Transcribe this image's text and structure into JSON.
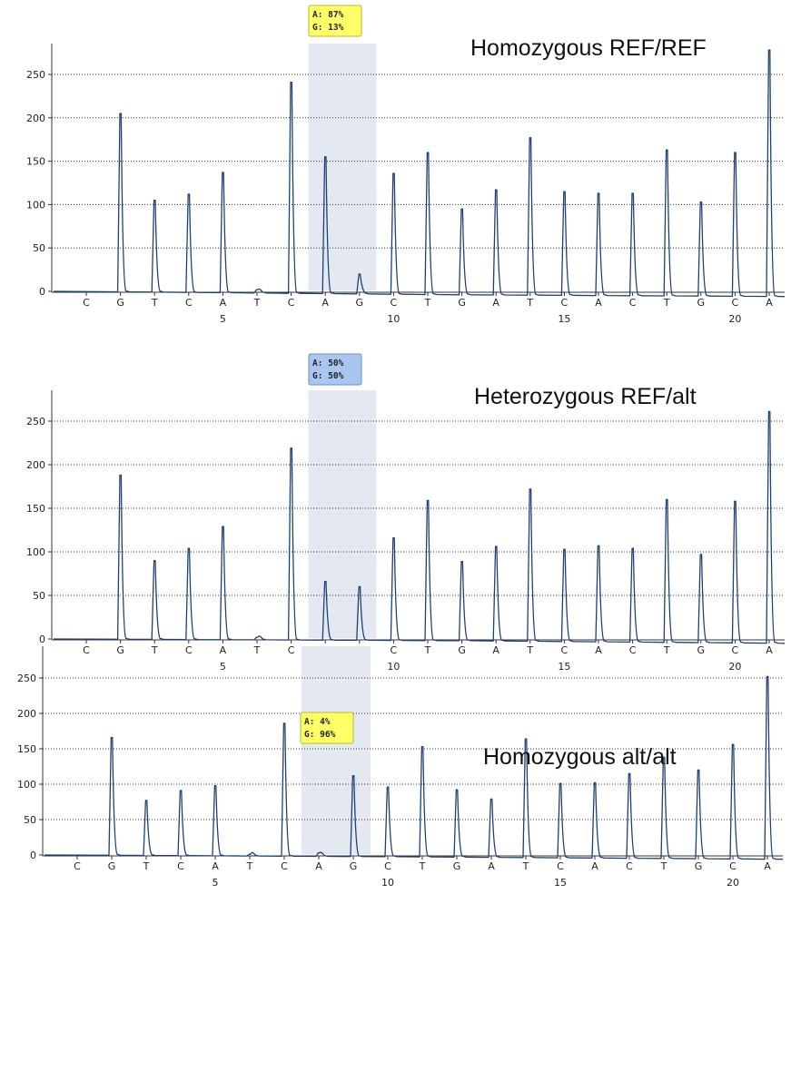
{
  "colors": {
    "trace": "#1f3f74",
    "highlight": "#e4e9f1",
    "badge_yellow_bg": "#ffff66",
    "badge_yellow_border": "#b8b830",
    "badge_blue_bg": "#a9c6f0",
    "badge_blue_border": "#6b8fd0",
    "grid": "#333333"
  },
  "chart_data": [
    {
      "type": "line",
      "title": "Homozygous REF/REF",
      "badge": {
        "line1": "A: 87%",
        "line2": "G: 13%",
        "style": "yellow"
      },
      "highlight_positions": [
        8,
        9
      ],
      "xlim": [
        0.5,
        21.5
      ],
      "ylim": [
        -10,
        285
      ],
      "y_ticks": [
        0,
        50,
        100,
        150,
        200,
        250
      ],
      "x_ticks": [
        5,
        10,
        15,
        20
      ],
      "grid": "horizontal dotted",
      "bases": [
        "C",
        "G",
        "T",
        "C",
        "A",
        "T",
        "C",
        "A",
        "G",
        "C",
        "T",
        "G",
        "A",
        "T",
        "C",
        "A",
        "C",
        "T",
        "G",
        "C",
        "A"
      ],
      "peak_heights": [
        0,
        205,
        105,
        112,
        137,
        2,
        241,
        155,
        20,
        136,
        160,
        95,
        117,
        177,
        115,
        113,
        113,
        163,
        103,
        160,
        278
      ],
      "baseline": [
        [
          0.5,
          0
        ],
        [
          12,
          -4
        ],
        [
          21.5,
          -6
        ]
      ]
    },
    {
      "type": "line",
      "title": "Heterozygous REF/alt",
      "badge": {
        "line1": "A: 50%",
        "line2": "G: 50%",
        "style": "blue"
      },
      "highlight_positions": [
        8,
        9
      ],
      "xlim": [
        0.5,
        21.5
      ],
      "ylim": [
        -10,
        285
      ],
      "y_ticks": [
        0,
        50,
        100,
        150,
        200,
        250
      ],
      "x_ticks": [
        5,
        10,
        15,
        20
      ],
      "grid": "horizontal dotted",
      "bases": [
        "C",
        "G",
        "T",
        "C",
        "A",
        "T",
        "C",
        "A",
        "G",
        "C",
        "T",
        "G",
        "A",
        "T",
        "C",
        "A",
        "C",
        "T",
        "G",
        "C",
        "A"
      ],
      "peak_heights": [
        0,
        188,
        90,
        104,
        129,
        2,
        219,
        66,
        60,
        116,
        159,
        89,
        106,
        172,
        103,
        107,
        104,
        160,
        97,
        158,
        261
      ],
      "baseline": [
        [
          0.5,
          0
        ],
        [
          12,
          -2
        ],
        [
          21.5,
          -5
        ]
      ]
    },
    {
      "type": "line",
      "title": "Homozygous alt/alt",
      "badge": {
        "line1": "A: 4%",
        "line2": "G: 96%",
        "style": "yellow"
      },
      "highlight_positions": [
        8,
        9
      ],
      "xlim": [
        0.5,
        21.5
      ],
      "ylim": [
        -10,
        285
      ],
      "y_ticks": [
        0,
        50,
        100,
        150,
        200,
        250
      ],
      "x_ticks": [
        5,
        10,
        15,
        20
      ],
      "grid": "horizontal dotted",
      "bases": [
        "C",
        "G",
        "T",
        "C",
        "A",
        "T",
        "C",
        "A",
        "G",
        "C",
        "T",
        "G",
        "A",
        "T",
        "C",
        "A",
        "C",
        "T",
        "G",
        "C",
        "A"
      ],
      "peak_heights": [
        0,
        166,
        77,
        91,
        98,
        1,
        186,
        3,
        112,
        96,
        153,
        92,
        79,
        164,
        101,
        102,
        115,
        138,
        120,
        156,
        252
      ],
      "baseline": [
        [
          0.5,
          0
        ],
        [
          12,
          -3
        ],
        [
          21.5,
          -6
        ]
      ]
    }
  ]
}
